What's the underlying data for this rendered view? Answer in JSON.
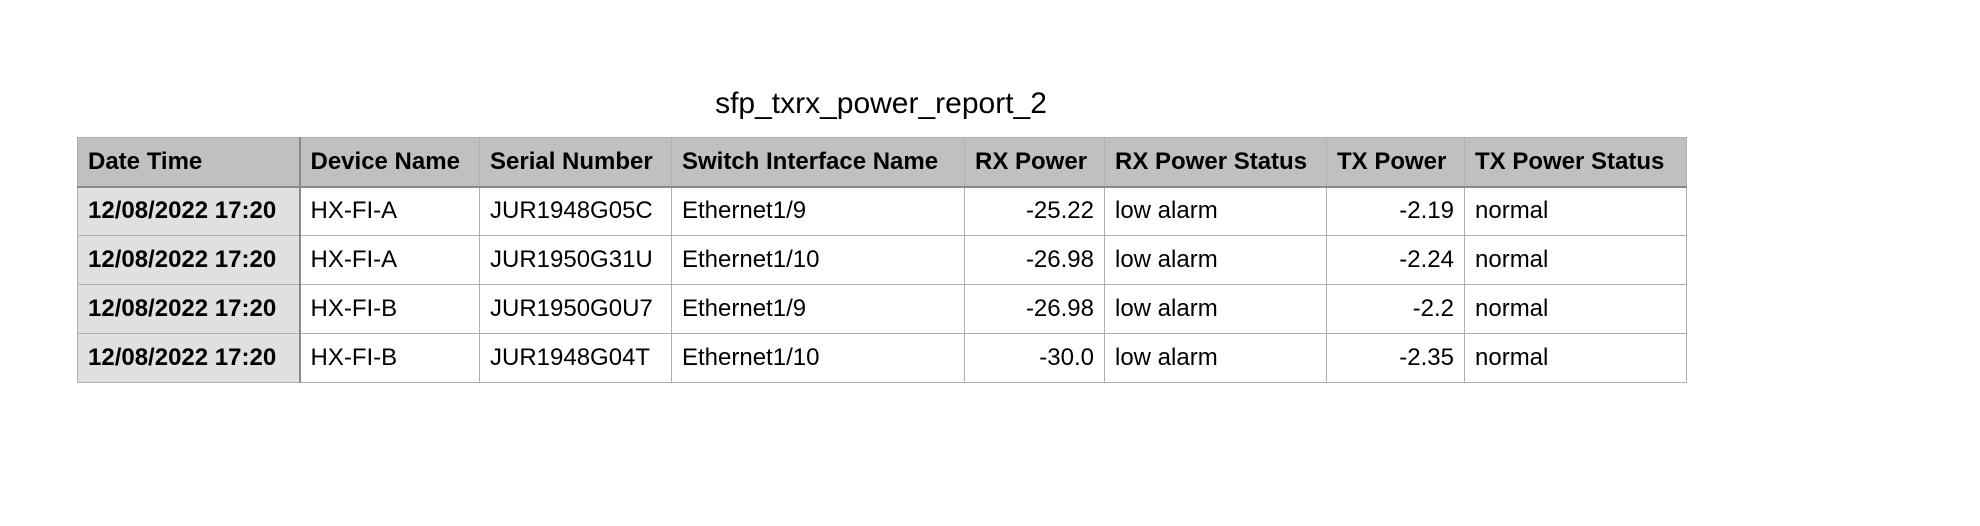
{
  "report": {
    "title": "sfp_txrx_power_report_2"
  },
  "table": {
    "headers": [
      "Date Time",
      "Device Name",
      "Serial Number",
      "Switch Interface Name",
      "RX Power",
      "RX Power Status",
      "TX Power",
      "TX Power Status"
    ],
    "rows": [
      [
        "12/08/2022 17:20",
        "HX-FI-A",
        "JUR1948G05C",
        "Ethernet1/9",
        "-25.22",
        "low alarm",
        "-2.19",
        "normal"
      ],
      [
        "12/08/2022 17:20",
        "HX-FI-A",
        "JUR1950G31U",
        "Ethernet1/10",
        "-26.98",
        "low alarm",
        "-2.24",
        "normal"
      ],
      [
        "12/08/2022 17:20",
        "HX-FI-B",
        "JUR1950G0U7",
        "Ethernet1/9",
        "-26.98",
        "low alarm",
        "-2.2",
        "normal"
      ],
      [
        "12/08/2022 17:20",
        "HX-FI-B",
        "JUR1948G04T",
        "Ethernet1/10",
        "-30.0",
        "low alarm",
        "-2.35",
        "normal"
      ]
    ]
  }
}
